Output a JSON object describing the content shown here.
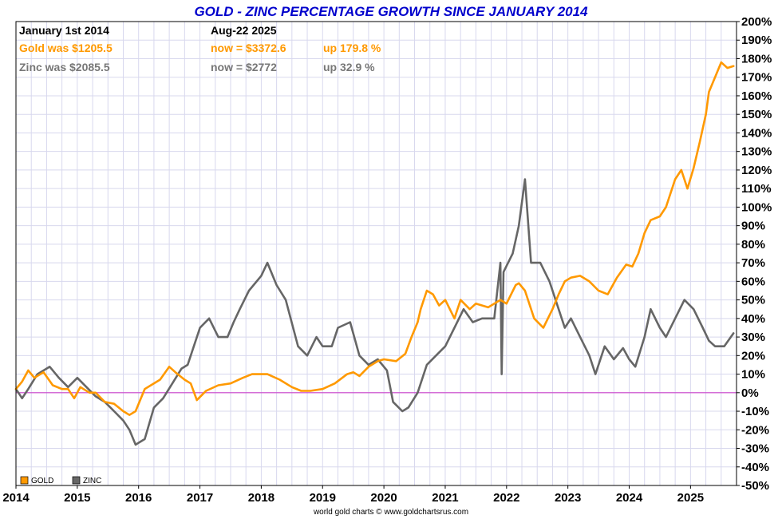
{
  "chart_data": {
    "type": "line",
    "title": "GOLD - ZINC PERCENTAGE GROWTH SINCE JANUARY 2014",
    "source": "world gold charts © www.goldchartsrus.com",
    "ylabel_unit": "%",
    "ylim": [
      -50,
      200
    ],
    "xlim": [
      2014,
      2025.75
    ],
    "y_ticks": [
      -50,
      -40,
      -30,
      -20,
      -10,
      0,
      10,
      20,
      30,
      40,
      50,
      60,
      70,
      80,
      90,
      100,
      110,
      120,
      130,
      140,
      150,
      160,
      170,
      180,
      190,
      200
    ],
    "y_tick_labels": [
      "-50%",
      "-40%",
      "-30%",
      "-20%",
      "-10%",
      "0%",
      "10%",
      "20%",
      "30%",
      "40%",
      "50%",
      "60%",
      "70%",
      "80%",
      "90%",
      "100%",
      "110%",
      "120%",
      "130%",
      "140%",
      "150%",
      "160%",
      "170%",
      "180%",
      "190%",
      "200%"
    ],
    "x_ticks": [
      2014,
      2015,
      2016,
      2017,
      2018,
      2019,
      2020,
      2021,
      2022,
      2023,
      2024,
      2025
    ],
    "x_tick_labels": [
      "2014",
      "2015",
      "2016",
      "2017",
      "2018",
      "2019",
      "2020",
      "2021",
      "2022",
      "2023",
      "2024",
      "2025"
    ],
    "grid": true,
    "zero_line_color": "#cc44cc",
    "info": {
      "start_label": "January 1st 2014",
      "end_label": "Aug-22  2025",
      "gold_start": "Gold was $1205.5",
      "gold_now": "now = $3372.6",
      "gold_change": "up 179.8 %",
      "zinc_start": "Zinc was $2085.5",
      "zinc_now": "now = $2772",
      "zinc_change": "up 32.9 %"
    },
    "legend": [
      {
        "name": "GOLD",
        "color": "#ff9900"
      },
      {
        "name": "ZINC",
        "color": "#666666"
      }
    ],
    "series": [
      {
        "name": "GOLD",
        "color": "#ff9900",
        "x": [
          2014.0,
          2014.1,
          2014.2,
          2014.3,
          2014.45,
          2014.6,
          2014.75,
          2014.85,
          2014.95,
          2015.05,
          2015.2,
          2015.3,
          2015.45,
          2015.6,
          2015.75,
          2015.85,
          2015.95,
          2016.1,
          2016.2,
          2016.35,
          2016.5,
          2016.6,
          2016.75,
          2016.85,
          2016.95,
          2017.1,
          2017.3,
          2017.5,
          2017.7,
          2017.85,
          2018.0,
          2018.1,
          2018.3,
          2018.5,
          2018.65,
          2018.8,
          2019.0,
          2019.2,
          2019.4,
          2019.5,
          2019.6,
          2019.75,
          2019.9,
          2020.0,
          2020.2,
          2020.35,
          2020.45,
          2020.55,
          2020.6,
          2020.7,
          2020.8,
          2020.9,
          2021.0,
          2021.15,
          2021.25,
          2021.4,
          2021.5,
          2021.7,
          2021.9,
          2022.0,
          2022.15,
          2022.2,
          2022.3,
          2022.45,
          2022.6,
          2022.75,
          2022.85,
          2022.95,
          2023.05,
          2023.2,
          2023.35,
          2023.5,
          2023.65,
          2023.8,
          2023.95,
          2024.05,
          2024.15,
          2024.25,
          2024.35,
          2024.5,
          2024.6,
          2024.75,
          2024.85,
          2024.95,
          2025.05,
          2025.15,
          2025.25,
          2025.3,
          2025.4,
          2025.5,
          2025.6,
          2025.7
        ],
        "y": [
          2,
          6,
          12,
          8,
          11,
          4,
          2,
          2,
          -3,
          3,
          0,
          0,
          -5,
          -6,
          -10,
          -12,
          -10,
          2,
          4,
          7,
          14,
          11,
          7,
          5,
          -4,
          1,
          4,
          5,
          8,
          10,
          10,
          10,
          7,
          3,
          1,
          1,
          2,
          5,
          10,
          11,
          9,
          14,
          17,
          18,
          17,
          21,
          30,
          38,
          45,
          55,
          53,
          47,
          50,
          40,
          50,
          45,
          48,
          46,
          50,
          48,
          58,
          59,
          55,
          40,
          35,
          45,
          53,
          60,
          62,
          63,
          60,
          55,
          53,
          62,
          69,
          68,
          75,
          86,
          93,
          95,
          100,
          115,
          120,
          110,
          121,
          135,
          150,
          162,
          170,
          178,
          175,
          176
        ]
      },
      {
        "name": "ZINC",
        "color": "#666666",
        "x": [
          2014.0,
          2014.1,
          2014.2,
          2014.35,
          2014.55,
          2014.7,
          2014.85,
          2015.0,
          2015.15,
          2015.3,
          2015.45,
          2015.6,
          2015.75,
          2015.85,
          2015.95,
          2016.1,
          2016.25,
          2016.4,
          2016.55,
          2016.7,
          2016.8,
          2016.9,
          2017.0,
          2017.15,
          2017.3,
          2017.45,
          2017.55,
          2017.65,
          2017.8,
          2018.0,
          2018.1,
          2018.25,
          2018.4,
          2018.6,
          2018.75,
          2018.9,
          2019.0,
          2019.15,
          2019.25,
          2019.45,
          2019.6,
          2019.75,
          2019.9,
          2020.05,
          2020.15,
          2020.3,
          2020.4,
          2020.55,
          2020.7,
          2020.85,
          2021.0,
          2021.15,
          2021.3,
          2021.45,
          2021.6,
          2021.8,
          2021.9,
          2021.92,
          2021.95,
          2022.1,
          2022.2,
          2022.3,
          2022.4,
          2022.55,
          2022.7,
          2022.85,
          2022.95,
          2023.05,
          2023.2,
          2023.35,
          2023.45,
          2023.6,
          2023.75,
          2023.9,
          2024.0,
          2024.1,
          2024.25,
          2024.35,
          2024.5,
          2024.6,
          2024.75,
          2024.9,
          2025.05,
          2025.2,
          2025.3,
          2025.4,
          2025.55,
          2025.7
        ],
        "y": [
          2,
          -3,
          2,
          10,
          14,
          8,
          3,
          8,
          3,
          -2,
          -5,
          -10,
          -15,
          -20,
          -28,
          -25,
          -8,
          -3,
          5,
          13,
          15,
          25,
          35,
          40,
          30,
          30,
          38,
          45,
          55,
          63,
          70,
          58,
          50,
          25,
          20,
          30,
          25,
          25,
          35,
          38,
          20,
          15,
          18,
          12,
          -5,
          -10,
          -8,
          0,
          15,
          20,
          25,
          35,
          45,
          38,
          40,
          40,
          70,
          10,
          65,
          75,
          90,
          115,
          70,
          70,
          60,
          45,
          35,
          40,
          30,
          20,
          10,
          25,
          18,
          24,
          18,
          14,
          30,
          45,
          35,
          30,
          40,
          50,
          45,
          35,
          28,
          25,
          25,
          32
        ]
      }
    ]
  }
}
